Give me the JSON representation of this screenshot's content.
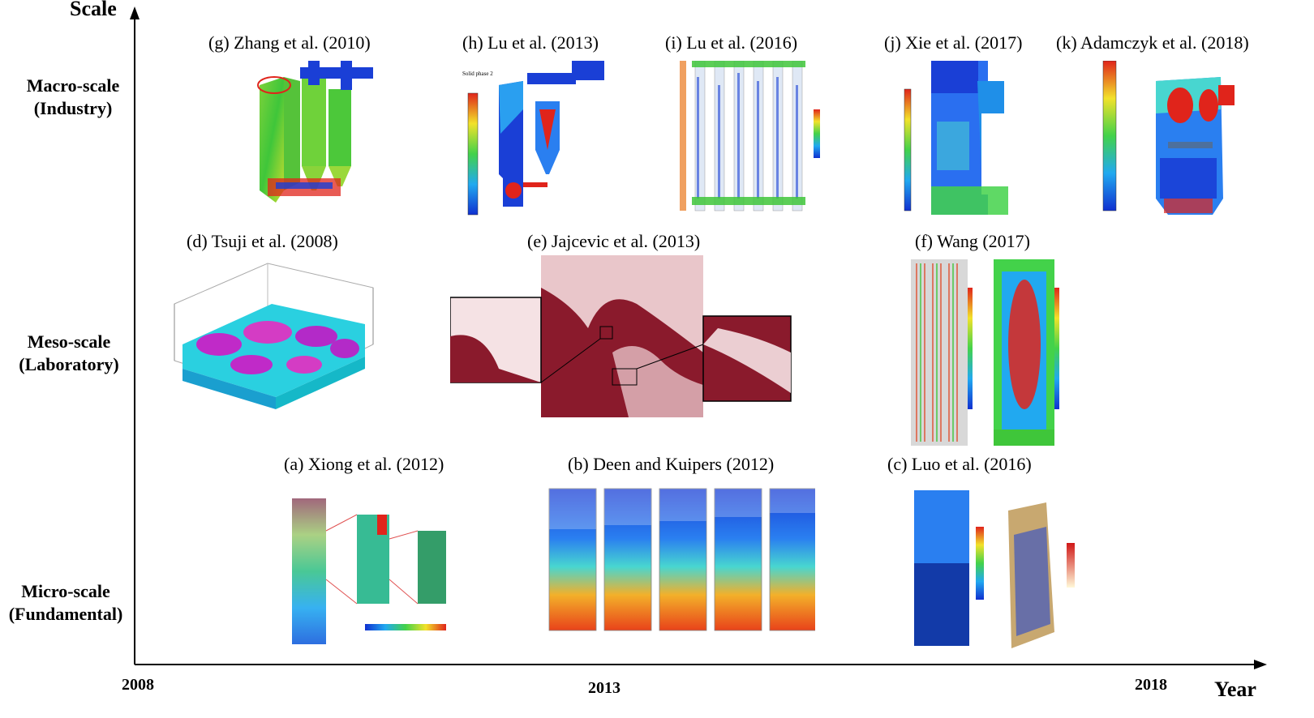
{
  "axes": {
    "y_title": "Scale",
    "x_title": "Year",
    "x_ticks": [
      "2008",
      "2013",
      "2018"
    ]
  },
  "scale_levels": [
    {
      "line1": "Macro-scale",
      "line2": "(Industry)"
    },
    {
      "line1": "Meso-scale",
      "line2": "(Laboratory)"
    },
    {
      "line1": "Micro-scale",
      "line2": "(Fundamental)"
    }
  ],
  "panels": {
    "a": {
      "title": "(a) Xiong et al. (2012)"
    },
    "b": {
      "title": "(b) Deen and Kuipers (2012)"
    },
    "c": {
      "title": "(c) Luo et al. (2016)"
    },
    "d": {
      "title": "(d) Tsuji et al. (2008)"
    },
    "e": {
      "title": "(e) Jajcevic et al. (2013)"
    },
    "f": {
      "title": "(f) Wang  (2017)"
    },
    "g": {
      "title": "(g) Zhang et al. (2010)"
    },
    "h": {
      "title": "(h) Lu et al. (2013)"
    },
    "i": {
      "title": "(i) Lu et al. (2016)"
    },
    "j": {
      "title": "(j) Xie et al. (2017)"
    },
    "k": {
      "title": "(k) Adamczyk et al. (2018)"
    }
  },
  "colors": {
    "accent_blue": "#1a3fd6",
    "accent_red": "#e0241b",
    "accent_green": "#3fc63a",
    "accent_yellow": "#f2e22a",
    "particle_maroon": "#8a1a2c"
  }
}
